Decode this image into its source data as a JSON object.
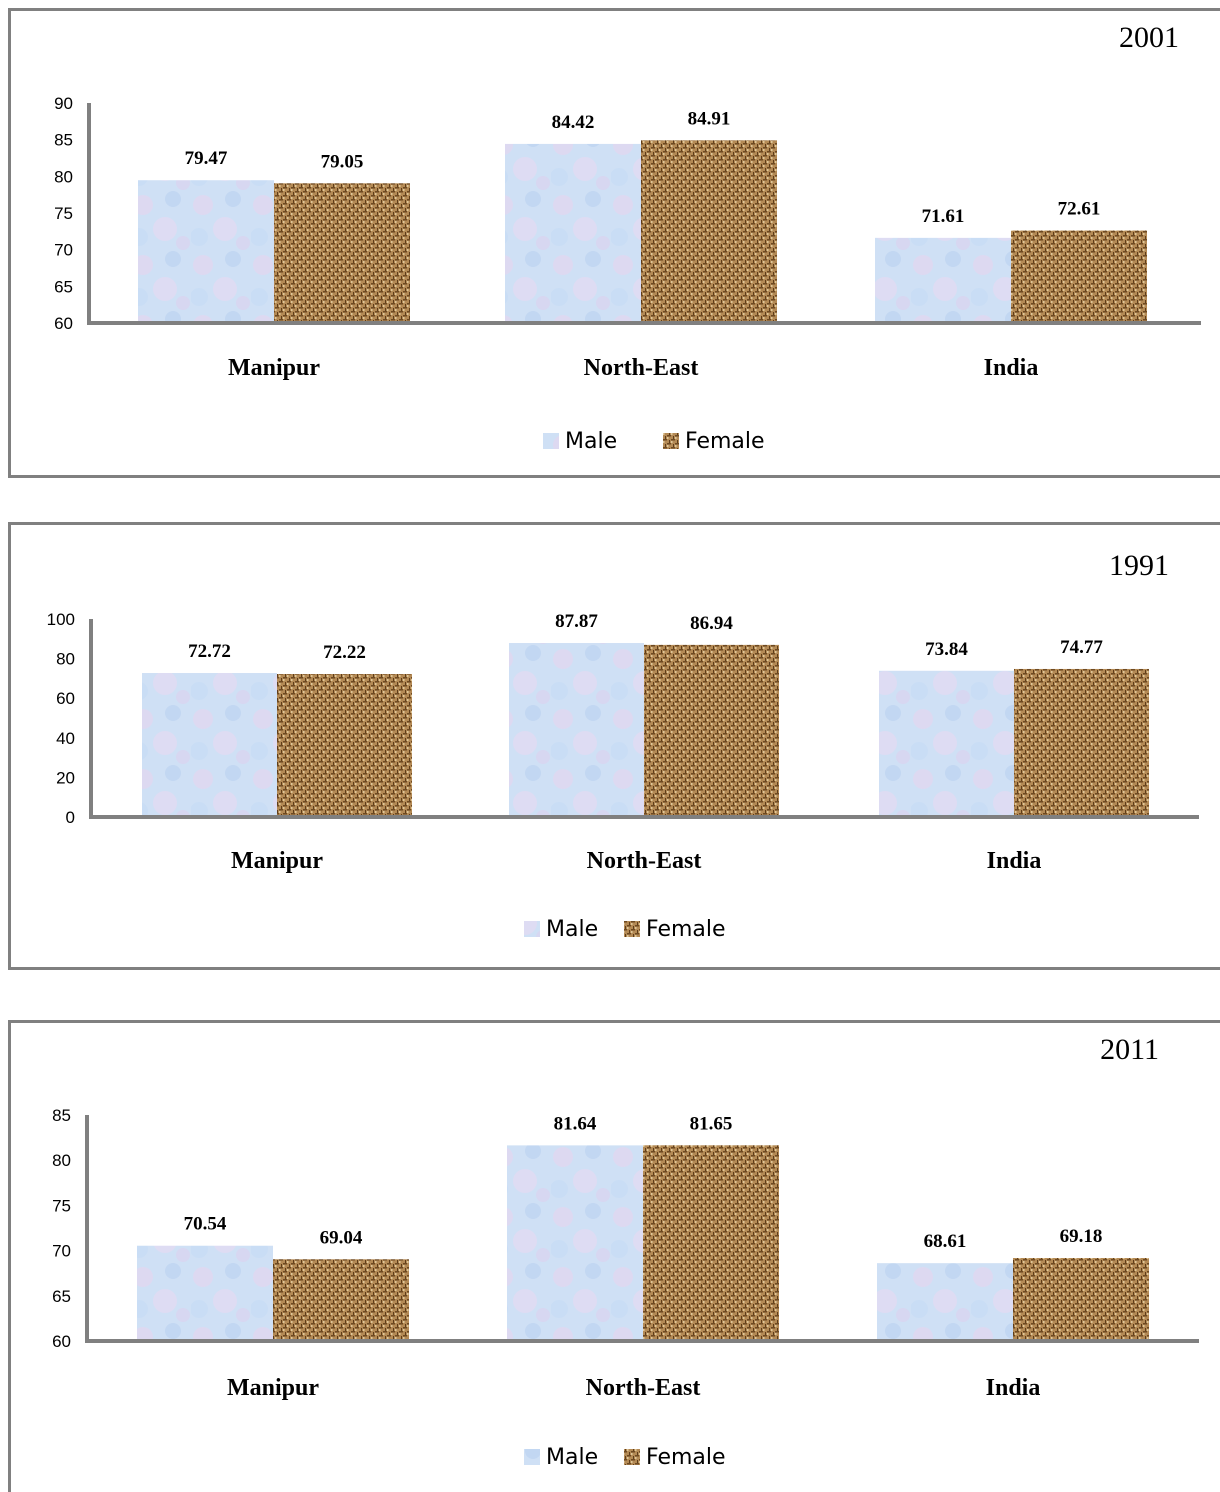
{
  "colors": {
    "male": "#cfe0f5",
    "female": "#b48a55",
    "axis": "#808080"
  },
  "chart_data": [
    {
      "type": "bar",
      "title": "2001",
      "categories": [
        "Manipur",
        "North-East",
        "India"
      ],
      "series": [
        {
          "name": "Male",
          "values": [
            79.47,
            84.42,
            71.61
          ]
        },
        {
          "name": "Female",
          "values": [
            79.05,
            84.91,
            72.61
          ]
        }
      ],
      "value_labels": {
        "Male": [
          "79.47",
          "84.42",
          "71.61"
        ],
        "Female": [
          "79.05",
          "84.91",
          "72.61"
        ]
      },
      "ylim": [
        60,
        90
      ],
      "yticks": [
        "60",
        "65",
        "70",
        "75",
        "80",
        "85",
        "90"
      ],
      "legend": "bottom",
      "grid": false
    },
    {
      "type": "bar",
      "title": "1991",
      "categories": [
        "Manipur",
        "North-East",
        "India"
      ],
      "series": [
        {
          "name": "Male",
          "values": [
            72.72,
            87.87,
            73.84
          ]
        },
        {
          "name": "Female",
          "values": [
            72.22,
            86.94,
            74.77
          ]
        }
      ],
      "value_labels": {
        "Male": [
          "72.72",
          "87.87",
          "73.84"
        ],
        "Female": [
          "72.22",
          "86.94",
          "74.77"
        ]
      },
      "ylim": [
        0,
        100
      ],
      "yticks": [
        "0",
        "20",
        "40",
        "60",
        "80",
        "100"
      ],
      "legend": "bottom",
      "grid": false
    },
    {
      "type": "bar",
      "title": "2011",
      "categories": [
        "Manipur",
        "North-East",
        "India"
      ],
      "series": [
        {
          "name": "Male",
          "values": [
            70.54,
            81.64,
            68.61
          ]
        },
        {
          "name": "Female",
          "values": [
            69.04,
            81.65,
            69.18
          ]
        }
      ],
      "value_labels": {
        "Male": [
          "70.54",
          "81.64",
          "68.61"
        ],
        "Female": [
          "69.04",
          "81.65",
          "69.18"
        ]
      },
      "ylim": [
        60,
        85
      ],
      "yticks": [
        "60",
        "65",
        "70",
        "75",
        "80",
        "85"
      ],
      "legend": "bottom",
      "grid": false
    }
  ]
}
